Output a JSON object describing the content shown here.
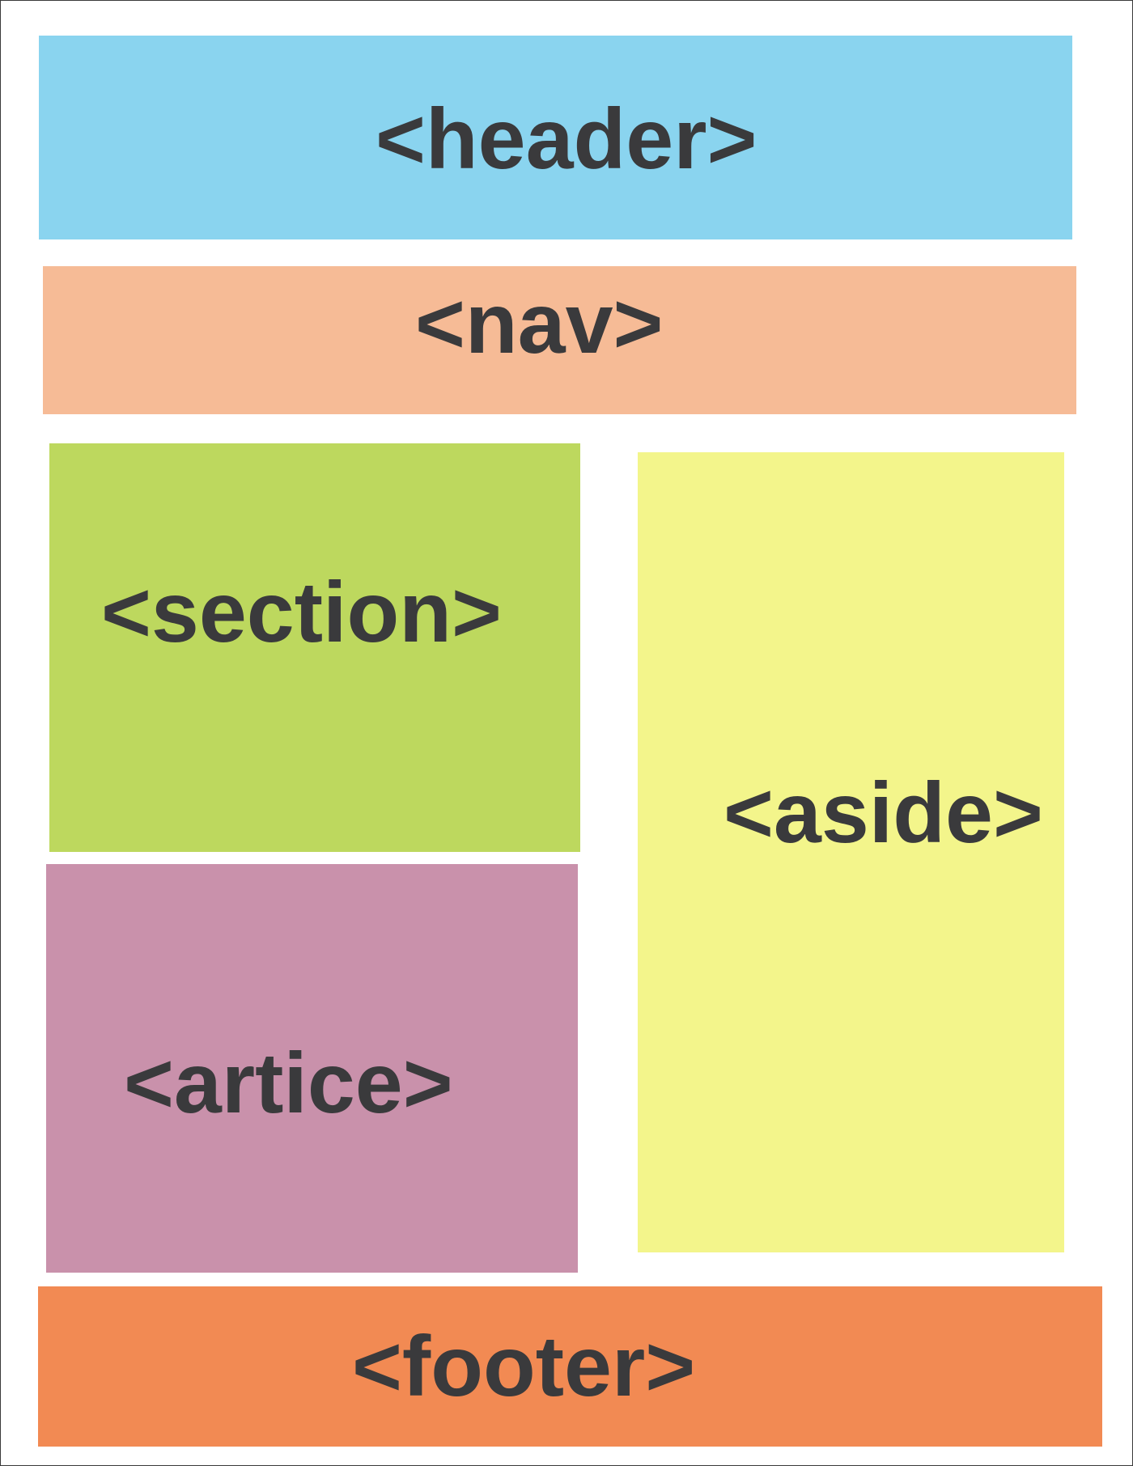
{
  "diagram": {
    "blocks": [
      {
        "id": "header",
        "label": "<header>",
        "color": "#8ad4ef"
      },
      {
        "id": "nav",
        "label": "<nav>",
        "color": "#f6bb96"
      },
      {
        "id": "section",
        "label": "<section>",
        "color": "#bdd85e"
      },
      {
        "id": "article",
        "label": "<artice>",
        "color": "#c991ab"
      },
      {
        "id": "aside",
        "label": "<aside>",
        "color": "#f3f58b"
      },
      {
        "id": "footer",
        "label": "<footer>",
        "color": "#f28a53"
      }
    ],
    "text_color": "#3a3a3c"
  }
}
